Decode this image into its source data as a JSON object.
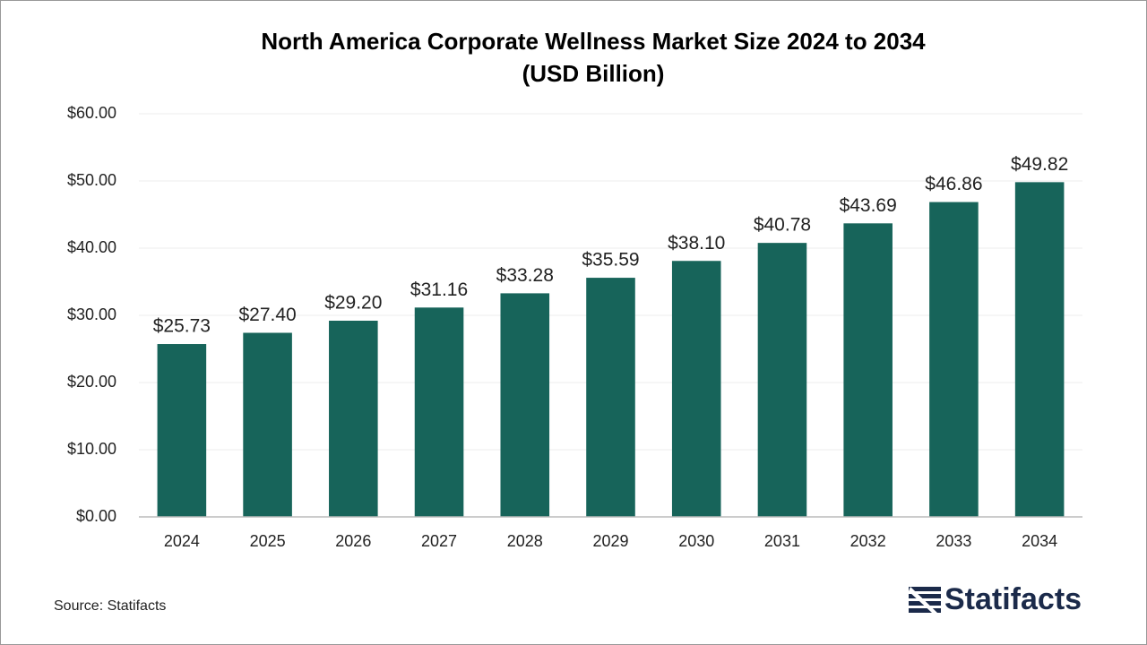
{
  "chart_data": {
    "type": "bar",
    "title": [
      "North America Corporate Wellness Market Size 2024 to 2034",
      "(USD Billion)"
    ],
    "categories": [
      "2024",
      "2025",
      "2026",
      "2027",
      "2028",
      "2029",
      "2030",
      "2031",
      "2032",
      "2033",
      "2034"
    ],
    "values": [
      25.73,
      27.4,
      29.2,
      31.16,
      33.28,
      35.59,
      38.1,
      40.78,
      43.69,
      46.86,
      49.82
    ],
    "value_labels": [
      "$25.73",
      "$27.40",
      "$29.20",
      "$31.16",
      "$33.28",
      "$35.59",
      "$38.10",
      "$40.78",
      "$43.69",
      "$46.86",
      "$49.82"
    ],
    "color": "#17645a",
    "ylim": [
      0,
      60
    ],
    "yticks": [
      {
        "value": 0,
        "label": "$0.00"
      },
      {
        "value": 10,
        "label": "$10.00"
      },
      {
        "value": 20,
        "label": "$20.00"
      },
      {
        "value": 30,
        "label": "$30.00"
      },
      {
        "value": 40,
        "label": "$40.00"
      },
      {
        "value": 50,
        "label": "$50.00"
      },
      {
        "value": 60,
        "label": "$60.00"
      }
    ],
    "grid": true
  },
  "source": "Source: Statifacts",
  "logo": "Statifacts"
}
